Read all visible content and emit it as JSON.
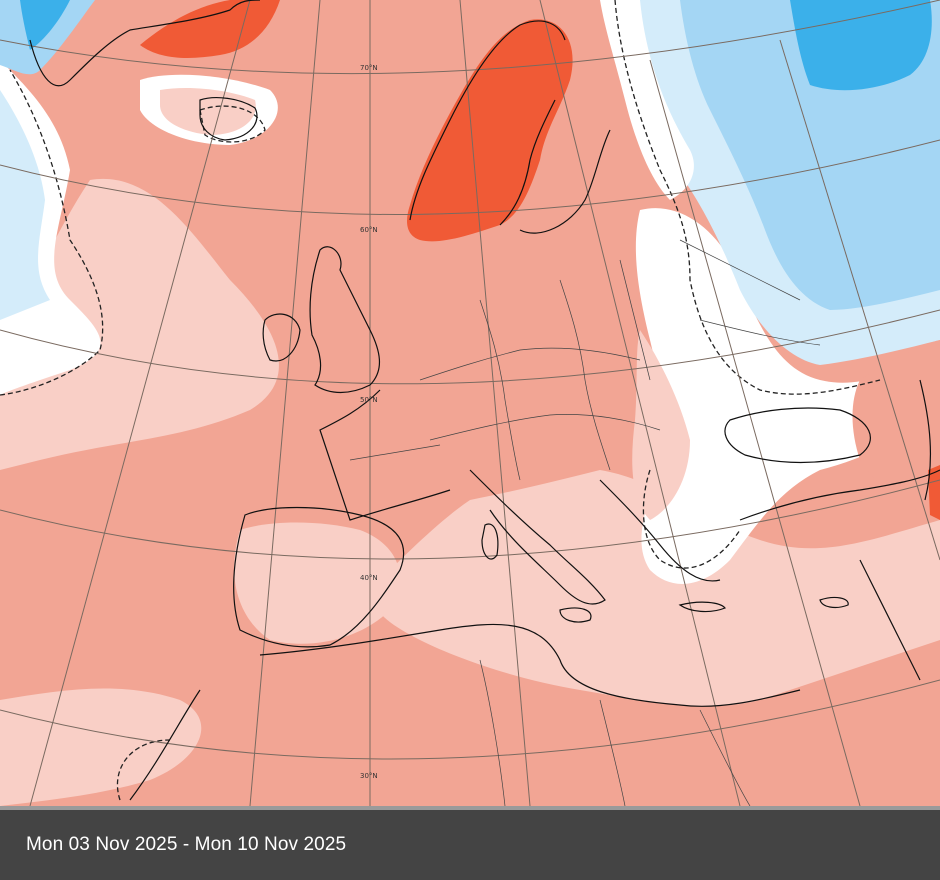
{
  "map": {
    "latitude_labels": [
      "70°N",
      "60°N",
      "50°N",
      "40°N",
      "30°N"
    ],
    "color_scale": {
      "warm_strong": "#f05a36",
      "warm_medium": "#f2a594",
      "warm_light": "#f9cfc6",
      "neutral": "#ffffff",
      "cool_light": "#d4ecfa",
      "cool_medium": "#a4d6f4",
      "cool_strong": "#3bb0ea"
    },
    "regions": {
      "scandinavia": "warm_strong",
      "greenland": "warm_strong",
      "western_europe": "warm_medium",
      "mediterranean": "warm_light",
      "eastern_europe": "neutral",
      "russia": "cool_medium",
      "north_atlantic_west": "cool_light"
    }
  },
  "caption": {
    "date_range": "Mon 03 Nov 2025 - Mon 10 Nov 2025"
  }
}
